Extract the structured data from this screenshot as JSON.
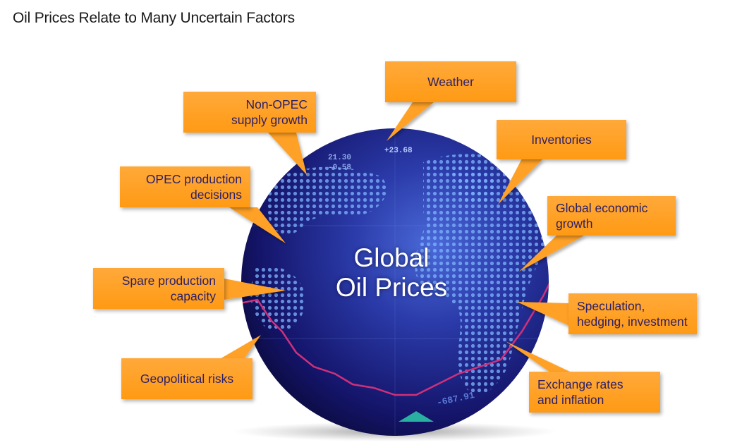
{
  "title": "Oil Prices Relate to Many Uncertain Factors",
  "center": {
    "line1": "Global",
    "line2": "Oil Prices"
  },
  "globe_texts": {
    "t1": "+23.68",
    "t2": "21.30",
    "t3": "-0.58",
    "t4": "-687.91"
  },
  "factors": {
    "weather": {
      "line1": "Weather"
    },
    "non_opec": {
      "line1": "Non-OPEC",
      "line2": "supply growth"
    },
    "inventories": {
      "line1": "Inventories"
    },
    "opec": {
      "line1": "OPEC production",
      "line2": "decisions"
    },
    "global_growth": {
      "line1": "Global economic",
      "line2": "growth"
    },
    "spare": {
      "line1": "Spare production",
      "line2": "capacity"
    },
    "speculation": {
      "line1": "Speculation,",
      "line2": "hedging, investment"
    },
    "geopolitical": {
      "line1": "Geopolitical risks"
    },
    "exchange": {
      "line1": "Exchange rates",
      "line2": "and inflation"
    }
  },
  "colors": {
    "box_fill": "#ff9a14",
    "box_text": "#2b1f66",
    "globe_dark": "#0b0a3a",
    "globe_light": "#3f5fc8"
  }
}
